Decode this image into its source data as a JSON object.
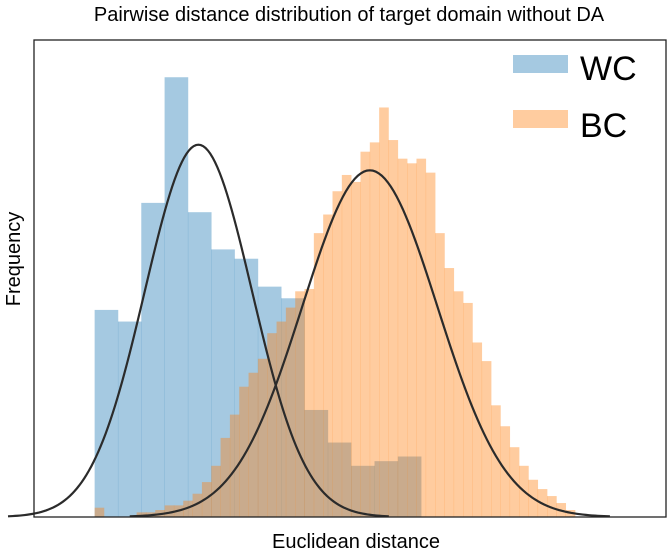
{
  "chart_data": {
    "type": "histogram",
    "title": "Pairwise distance distribution of target domain without DA",
    "xlabel": "Euclidean distance",
    "ylabel": "Frequency",
    "x_ticks_shown": false,
    "y_ticks_shown": false,
    "grid": false,
    "legend_position": "top-right",
    "series": [
      {
        "name": "WC",
        "color": "#1f77b4",
        "opacity": 0.4,
        "bins": [
          {
            "start": 0.0,
            "end": 1.0,
            "value": 89
          },
          {
            "start": 1.0,
            "end": 2.0,
            "value": 84
          },
          {
            "start": 2.0,
            "end": 3.0,
            "value": 135
          },
          {
            "start": 3.0,
            "end": 4.0,
            "value": 189
          },
          {
            "start": 4.0,
            "end": 5.0,
            "value": 131
          },
          {
            "start": 5.0,
            "end": 6.0,
            "value": 115
          },
          {
            "start": 6.0,
            "end": 7.0,
            "value": 111
          },
          {
            "start": 7.0,
            "end": 8.0,
            "value": 99
          },
          {
            "start": 8.0,
            "end": 9.0,
            "value": 94
          },
          {
            "start": 9.0,
            "end": 10.0,
            "value": 46
          },
          {
            "start": 10.0,
            "end": 11.0,
            "value": 32
          },
          {
            "start": 11.0,
            "end": 12.0,
            "value": 22
          },
          {
            "start": 12.0,
            "end": 13.0,
            "value": 24
          },
          {
            "start": 13.0,
            "end": 14.0,
            "value": 26
          }
        ],
        "fit_curve": {
          "mean": 4.45,
          "std": 2.3,
          "peak": 160
        }
      },
      {
        "name": "BC",
        "color": "#ff7f0e",
        "opacity": 0.4,
        "bins": [
          {
            "start": 0.0,
            "end": 0.4,
            "value": 4
          },
          {
            "start": 1.8,
            "end": 2.2,
            "value": 2
          },
          {
            "start": 2.2,
            "end": 2.6,
            "value": 2
          },
          {
            "start": 2.6,
            "end": 3.0,
            "value": 3
          },
          {
            "start": 3.0,
            "end": 3.4,
            "value": 5
          },
          {
            "start": 3.4,
            "end": 3.8,
            "value": 5
          },
          {
            "start": 3.8,
            "end": 4.2,
            "value": 7
          },
          {
            "start": 4.2,
            "end": 4.6,
            "value": 10
          },
          {
            "start": 4.6,
            "end": 5.0,
            "value": 15
          },
          {
            "start": 5.0,
            "end": 5.4,
            "value": 22
          },
          {
            "start": 5.4,
            "end": 5.8,
            "value": 34
          },
          {
            "start": 5.8,
            "end": 6.2,
            "value": 44
          },
          {
            "start": 6.2,
            "end": 6.6,
            "value": 56
          },
          {
            "start": 6.6,
            "end": 7.0,
            "value": 62
          },
          {
            "start": 7.0,
            "end": 7.4,
            "value": 68
          },
          {
            "start": 7.4,
            "end": 7.8,
            "value": 79
          },
          {
            "start": 7.8,
            "end": 8.2,
            "value": 84
          },
          {
            "start": 8.2,
            "end": 8.6,
            "value": 90
          },
          {
            "start": 8.6,
            "end": 9.0,
            "value": 97
          },
          {
            "start": 9.0,
            "end": 9.4,
            "value": 98
          },
          {
            "start": 9.4,
            "end": 9.8,
            "value": 122
          },
          {
            "start": 9.8,
            "end": 10.2,
            "value": 130
          },
          {
            "start": 10.2,
            "end": 10.6,
            "value": 140
          },
          {
            "start": 10.6,
            "end": 11.0,
            "value": 147
          },
          {
            "start": 11.0,
            "end": 11.4,
            "value": 144
          },
          {
            "start": 11.4,
            "end": 11.8,
            "value": 157
          },
          {
            "start": 11.8,
            "end": 12.2,
            "value": 161
          },
          {
            "start": 12.2,
            "end": 12.6,
            "value": 176
          },
          {
            "start": 12.6,
            "end": 13.0,
            "value": 162
          },
          {
            "start": 13.0,
            "end": 13.4,
            "value": 154
          },
          {
            "start": 13.4,
            "end": 13.8,
            "value": 152
          },
          {
            "start": 13.8,
            "end": 14.2,
            "value": 154
          },
          {
            "start": 14.2,
            "end": 14.6,
            "value": 148
          },
          {
            "start": 14.6,
            "end": 15.0,
            "value": 122
          },
          {
            "start": 15.0,
            "end": 15.4,
            "value": 107
          },
          {
            "start": 15.4,
            "end": 15.8,
            "value": 97
          },
          {
            "start": 15.8,
            "end": 16.2,
            "value": 92
          },
          {
            "start": 16.2,
            "end": 16.6,
            "value": 75
          },
          {
            "start": 16.6,
            "end": 17.0,
            "value": 67
          },
          {
            "start": 17.0,
            "end": 17.4,
            "value": 48
          },
          {
            "start": 17.4,
            "end": 17.8,
            "value": 39
          },
          {
            "start": 17.8,
            "end": 18.2,
            "value": 30
          },
          {
            "start": 18.2,
            "end": 18.6,
            "value": 22
          },
          {
            "start": 18.6,
            "end": 19.0,
            "value": 16
          },
          {
            "start": 19.0,
            "end": 19.4,
            "value": 12
          },
          {
            "start": 19.4,
            "end": 19.8,
            "value": 9
          },
          {
            "start": 19.8,
            "end": 20.2,
            "value": 6
          },
          {
            "start": 20.2,
            "end": 20.6,
            "value": 3
          }
        ],
        "fit_curve": {
          "mean": 11.8,
          "std": 2.9,
          "peak": 149
        }
      }
    ],
    "xlim": [
      -2.6,
      24.5
    ],
    "ylim": [
      0,
      205
    ]
  }
}
